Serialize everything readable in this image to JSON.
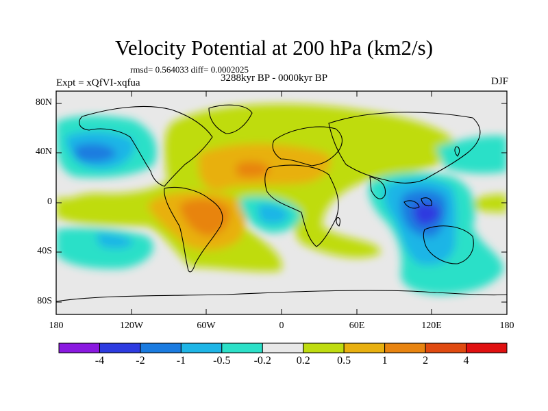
{
  "title": "Velocity Potential at 200 hPa (km2/s)",
  "stats": "rmsd= 0.564033 diff= 0.0002025",
  "experiment": "Expt = xQfVI-xqfua",
  "period": "3288kyr BP - 0000kyr BP",
  "season": "DJF",
  "y_ticks": [
    "80N",
    "40N",
    "0",
    "40S",
    "80S"
  ],
  "x_ticks": [
    "180",
    "120W",
    "60W",
    "0",
    "60E",
    "120E",
    "180"
  ],
  "colorbar": {
    "labels": [
      "-4",
      "-2",
      "-1",
      "-0.5",
      "-0.2",
      "0.2",
      "0.5",
      "1",
      "2",
      "4"
    ],
    "colors": [
      "#8a19e0",
      "#2d3be0",
      "#1a7be0",
      "#1eb5e6",
      "#2ce0c8",
      "#e8e8e8",
      "#bfdc10",
      "#e8b010",
      "#e88410",
      "#e04a10",
      "#e01010"
    ]
  }
}
